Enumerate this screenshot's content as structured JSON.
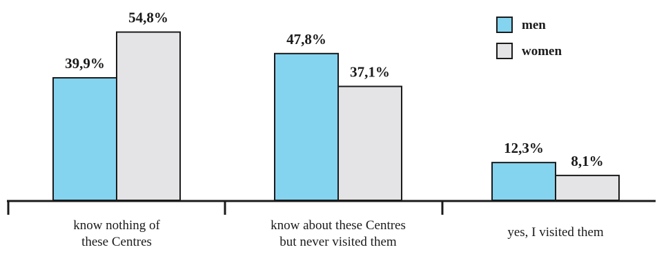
{
  "chart_data": {
    "type": "bar",
    "categories": [
      [
        "know nothing of",
        "these Centres"
      ],
      [
        "know about these Centres",
        "but never visited them"
      ],
      [
        "yes, I visited them"
      ]
    ],
    "series": [
      {
        "name": "men",
        "color": "#84d4f0",
        "values": [
          39.9,
          47.8,
          12.3
        ],
        "labels": [
          "39,9%",
          "47,8%",
          "12,3%"
        ]
      },
      {
        "name": "women",
        "color": "#e4e4e6",
        "values": [
          54.8,
          37.1,
          8.1
        ],
        "labels": [
          "54,8%",
          "37,1%",
          "8,1%"
        ]
      }
    ],
    "unit": "%",
    "ylim": [
      0,
      60
    ],
    "legend": "top-right",
    "grid": false
  }
}
